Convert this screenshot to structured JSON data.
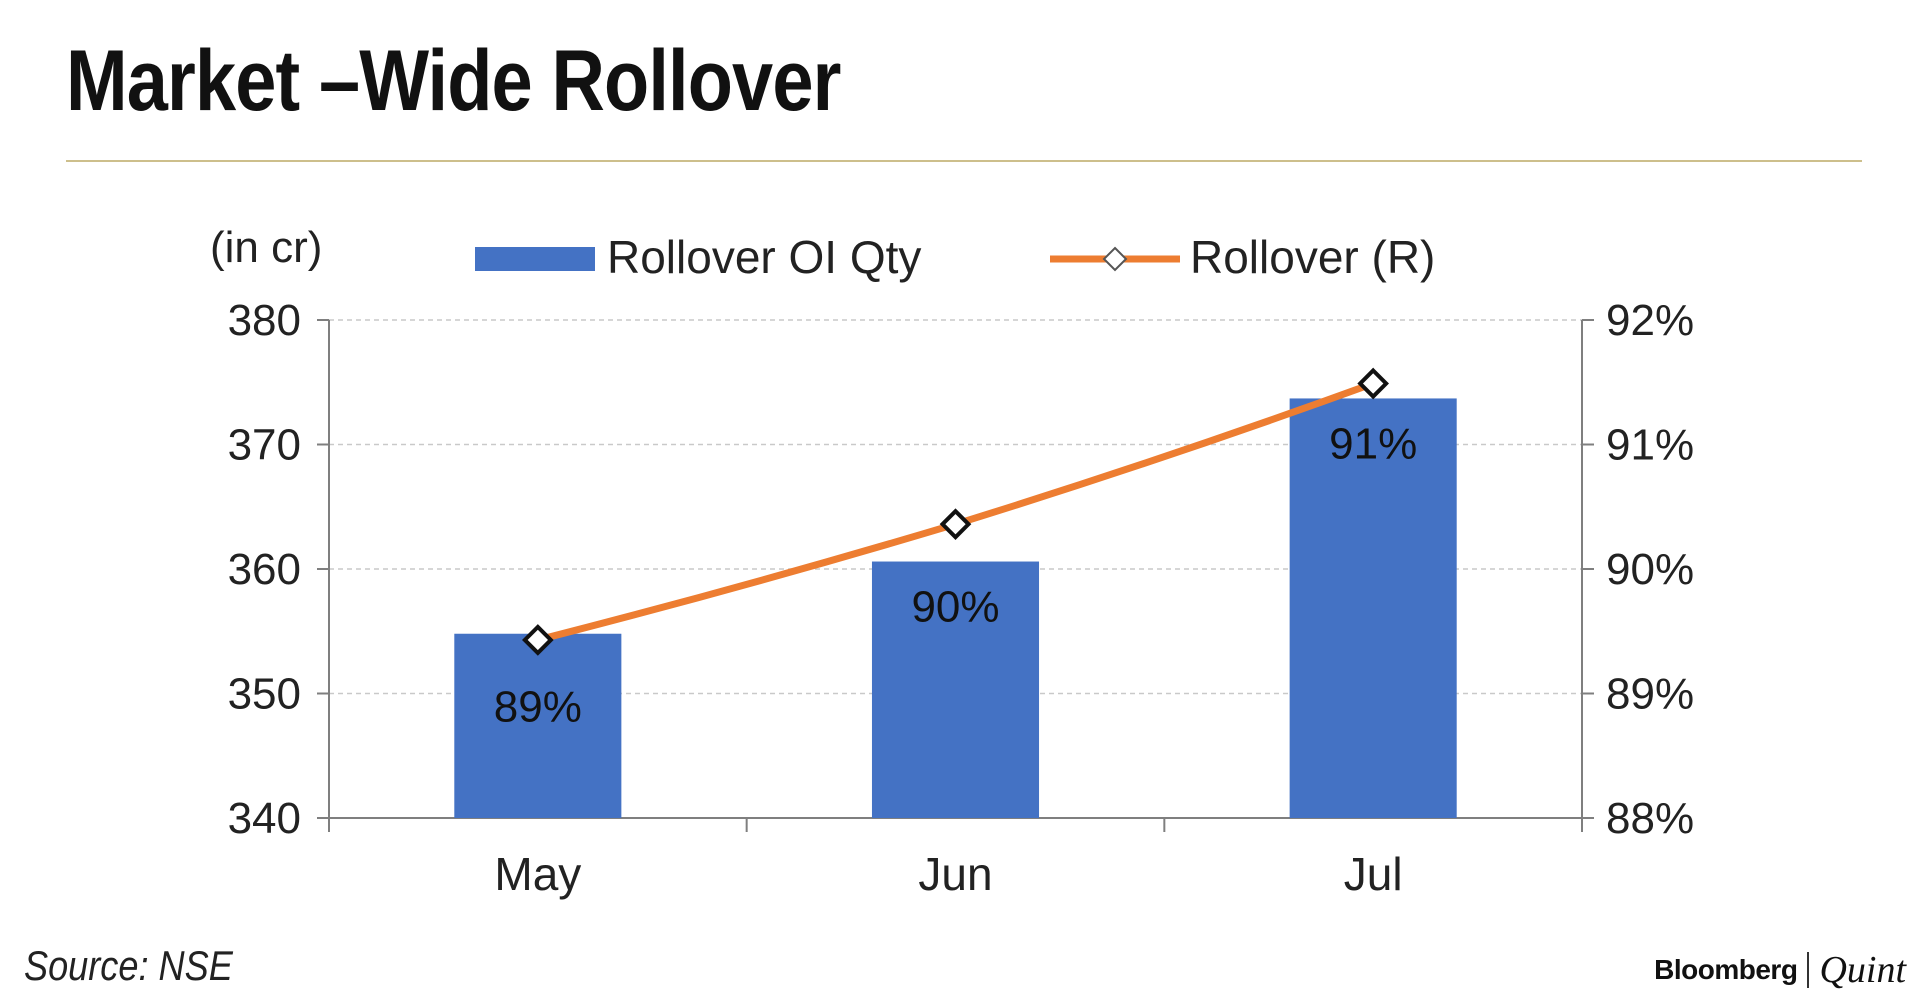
{
  "page": {
    "title": "Market –Wide Rollover",
    "source": "Source: NSE",
    "brand_left": "Bloomberg",
    "brand_right": "Quint",
    "rule_color": "#cdbf8c"
  },
  "chart_data": {
    "type": "bar",
    "categories": [
      "May",
      "Jun",
      "Jul"
    ],
    "left_axis_unit_label": "(in cr)",
    "ylim": [
      340,
      380
    ],
    "y_ticks": [
      "340",
      "350",
      "360",
      "370",
      "380"
    ],
    "y2lim": [
      88,
      92
    ],
    "y2_ticks": [
      "88%",
      "89%",
      "90%",
      "91%",
      "92%"
    ],
    "grid": true,
    "legend_position": "top",
    "series": [
      {
        "name": "Rollover OI Qty",
        "kind": "bar",
        "axis": "left",
        "color": "#4472c4",
        "values": [
          354.8,
          360.6,
          373.7
        ],
        "data_labels": [
          "89%",
          "90%",
          "91%"
        ]
      },
      {
        "name": "Rollover (R)",
        "kind": "line",
        "axis": "right",
        "color": "#ed7d31",
        "marker": "diamond",
        "values": [
          89.43,
          90.36,
          91.49
        ]
      }
    ]
  }
}
